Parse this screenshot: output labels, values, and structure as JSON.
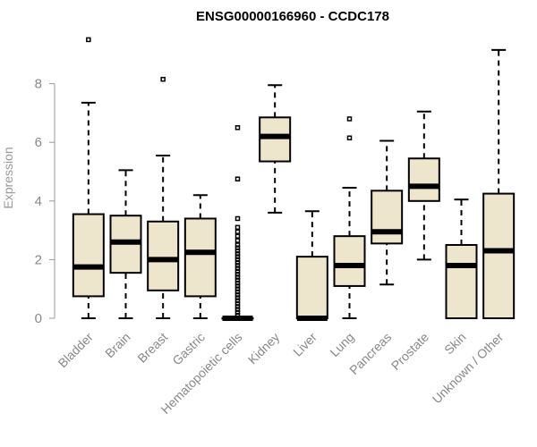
{
  "chart_data": {
    "type": "boxplot",
    "title": "ENSG00000166960 - CCDC178",
    "xlabel": "",
    "ylabel": "Expression",
    "ylim": [
      0,
      9.6
    ],
    "yticks": [
      0,
      2,
      4,
      6,
      8
    ],
    "categories": [
      "Bladder",
      "Brain",
      "Breast",
      "Gastric",
      "Hematopoietic cells",
      "Kidney",
      "Liver",
      "Lung",
      "Pancreas",
      "Prostate",
      "Skin",
      "Unknown / Other"
    ],
    "boxes": [
      {
        "name": "Bladder",
        "whisker_low": 0,
        "q1": 0.75,
        "median": 1.75,
        "q3": 3.55,
        "whisker_high": 7.35,
        "outliers": [
          9.5
        ]
      },
      {
        "name": "Brain",
        "whisker_low": 0,
        "q1": 1.55,
        "median": 2.6,
        "q3": 3.5,
        "whisker_high": 5.05,
        "outliers": []
      },
      {
        "name": "Breast",
        "whisker_low": 0,
        "q1": 0.95,
        "median": 2.0,
        "q3": 3.3,
        "whisker_high": 5.55,
        "outliers": [
          8.15
        ]
      },
      {
        "name": "Gastric",
        "whisker_low": 0,
        "q1": 0.75,
        "median": 2.25,
        "q3": 3.4,
        "whisker_high": 4.2,
        "outliers": []
      },
      {
        "name": "Hematopoietic cells",
        "whisker_low": 0,
        "q1": 0,
        "median": 0,
        "q3": 0,
        "whisker_high": 0,
        "outliers": [
          6.5,
          4.75,
          3.4,
          3.1,
          2.95,
          2.8,
          2.65,
          2.5,
          2.4,
          2.3,
          2.2,
          2.1,
          2.0,
          1.9,
          1.8,
          1.7,
          1.6,
          1.5,
          1.4,
          1.3,
          1.2,
          1.1,
          1.0,
          0.9,
          0.8,
          0.7,
          0.6,
          0.5,
          0.4,
          0.3,
          0.2,
          0.1
        ]
      },
      {
        "name": "Kidney",
        "whisker_low": 3.6,
        "q1": 5.35,
        "median": 6.2,
        "q3": 6.85,
        "whisker_high": 7.95,
        "outliers": []
      },
      {
        "name": "Liver",
        "whisker_low": 0,
        "q1": 0,
        "median": 0,
        "q3": 2.1,
        "whisker_high": 3.65,
        "outliers": []
      },
      {
        "name": "Lung",
        "whisker_low": 0,
        "q1": 1.1,
        "median": 1.8,
        "q3": 2.8,
        "whisker_high": 4.45,
        "outliers": [
          6.15,
          6.8
        ]
      },
      {
        "name": "Pancreas",
        "whisker_low": 1.15,
        "q1": 2.55,
        "median": 2.95,
        "q3": 4.35,
        "whisker_high": 6.05,
        "outliers": []
      },
      {
        "name": "Prostate",
        "whisker_low": 2.0,
        "q1": 4.0,
        "median": 4.5,
        "q3": 5.45,
        "whisker_high": 7.05,
        "outliers": []
      },
      {
        "name": "Skin",
        "whisker_low": 0,
        "q1": 0,
        "median": 1.8,
        "q3": 2.5,
        "whisker_high": 4.05,
        "outliers": []
      },
      {
        "name": "Unknown / Other",
        "whisker_low": 0,
        "q1": 0,
        "median": 2.3,
        "q3": 4.25,
        "whisker_high": 9.15,
        "outliers": []
      }
    ]
  }
}
